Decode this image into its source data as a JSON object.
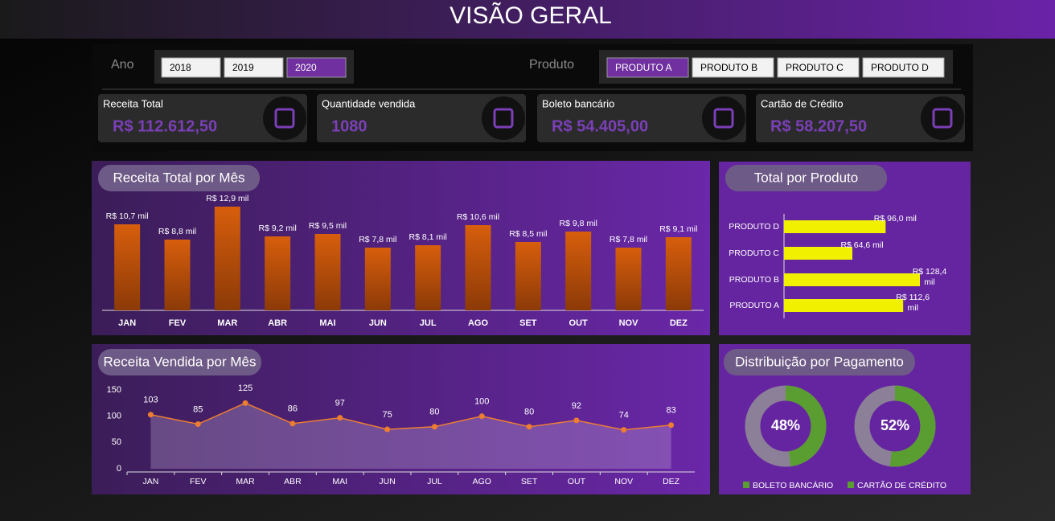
{
  "header": {
    "title": "VISÃO GERAL"
  },
  "filters": [
    {
      "label": "Ano",
      "options": [
        {
          "label": "2018",
          "selected": false
        },
        {
          "label": "2019",
          "selected": false
        },
        {
          "label": "2020",
          "selected": true
        }
      ]
    },
    {
      "label": "Produto",
      "options": [
        {
          "label": "PRODUTO A",
          "selected": true
        },
        {
          "label": "PRODUTO B",
          "selected": false
        },
        {
          "label": "PRODUTO C",
          "selected": false
        },
        {
          "label": "PRODUTO D",
          "selected": false
        }
      ]
    }
  ],
  "kpis": [
    {
      "title": "Receita Total",
      "value": "R$ 112.612,50"
    },
    {
      "title": "Quantidade vendida",
      "value": "1080"
    },
    {
      "title": "Boleto bancário",
      "value": "R$ 54.405,00"
    },
    {
      "title": "Cartão de Crédito",
      "value": "R$ 58.207,50"
    }
  ],
  "chart_data": [
    {
      "type": "bar",
      "title": "Receita Total por Mês",
      "categories": [
        "JAN",
        "FEV",
        "MAR",
        "ABR",
        "MAI",
        "JUN",
        "JUL",
        "AGO",
        "SET",
        "OUT",
        "NOV",
        "DEZ"
      ],
      "values": [
        10.7,
        8.8,
        12.9,
        9.2,
        9.5,
        7.8,
        8.1,
        10.6,
        8.5,
        9.8,
        7.8,
        9.1
      ],
      "value_labels": [
        "R$ 10,7 mil",
        "R$ 8,8 mil",
        "R$ 12,9 mil",
        "R$ 9,2 mil",
        "R$ 9,5 mil",
        "R$ 7,8 mil",
        "R$ 8,1 mil",
        "R$ 10,6 mil",
        "R$ 8,5 mil",
        "R$ 9,8 mil",
        "R$ 7,8 mil",
        "R$ 9,1 mil"
      ],
      "color": "#c55a11"
    },
    {
      "type": "hbar",
      "title": "Total por Produto",
      "categories": [
        "PRODUTO D",
        "PRODUTO C",
        "PRODUTO B",
        "PRODUTO A"
      ],
      "values": [
        96.0,
        64.6,
        128.4,
        112.6
      ],
      "value_labels": [
        "R$ 96,0 mil",
        "R$ 64,6 mil",
        "R$ 128,4 mil",
        "R$ 112,6 mil"
      ],
      "color": "#f0f000"
    },
    {
      "type": "line",
      "title": "Receita Vendida por Mês",
      "categories": [
        "JAN",
        "FEV",
        "MAR",
        "ABR",
        "MAI",
        "JUN",
        "JUL",
        "AGO",
        "SET",
        "OUT",
        "NOV",
        "DEZ"
      ],
      "values": [
        103,
        85,
        125,
        86,
        97,
        75,
        80,
        100,
        80,
        92,
        74,
        83
      ],
      "ylim": [
        0,
        150
      ],
      "yticks": [
        0,
        50,
        100,
        150
      ],
      "color": "#ed7d31"
    },
    {
      "type": "donut",
      "title": "Distribuição por Pagamento",
      "categories": [
        "BOLETO BANCÁRIO",
        "CARTÃO DE CRÉDITO"
      ],
      "values": [
        48,
        52
      ],
      "value_labels": [
        "48%",
        "52%"
      ],
      "color": "#5a9e32"
    }
  ]
}
